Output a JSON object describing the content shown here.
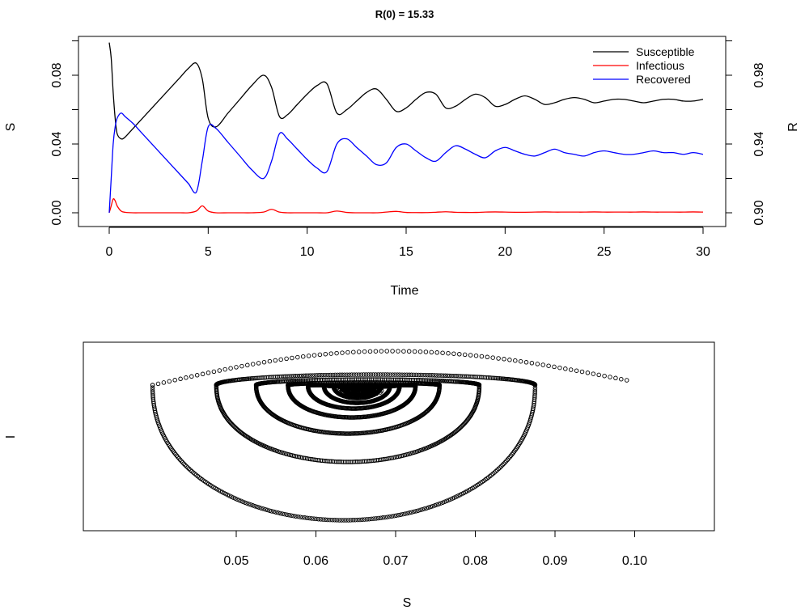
{
  "chart_data": [
    {
      "type": "line",
      "title": "R(0) = 15.33",
      "xlabel": "Time",
      "ylabel_left": "S",
      "ylabel_right": "R",
      "xlim": [
        0,
        30
      ],
      "ylim_left": [
        0,
        0.1
      ],
      "ylim_right": [
        0.9,
        1.0
      ],
      "x_ticks": [
        "0",
        "5",
        "10",
        "15",
        "20",
        "25",
        "30"
      ],
      "y_ticks_left": [
        "0.00",
        "0.04",
        "0.08"
      ],
      "y_ticks_right": [
        "0.90",
        "0.94",
        "0.98"
      ],
      "legend_position": "top-right",
      "x": [
        0,
        0.1,
        0.2,
        0.3,
        0.4,
        0.6,
        0.8,
        1.2,
        1.6,
        2,
        2.4,
        2.8,
        3.2,
        3.6,
        4,
        4.4,
        4.7,
        5,
        5.4,
        6,
        6.6,
        7.2,
        7.8,
        8.2,
        8.6,
        9,
        9.5,
        10,
        10.5,
        11,
        11.5,
        12,
        12.5,
        13,
        13.5,
        14,
        14.5,
        15,
        15.5,
        16,
        16.5,
        17,
        17.5,
        18,
        18.5,
        19,
        19.5,
        20,
        20.5,
        21,
        21.5,
        22,
        22.5,
        23,
        23.5,
        24,
        24.5,
        25,
        25.5,
        26,
        26.5,
        27,
        27.5,
        28,
        28.5,
        29,
        29.5,
        30
      ],
      "series": [
        {
          "name": "Susceptible",
          "color": "#000000",
          "axis": "left",
          "values": [
            0.099,
            0.09,
            0.07,
            0.055,
            0.046,
            0.043,
            0.044,
            0.049,
            0.054,
            0.059,
            0.064,
            0.069,
            0.074,
            0.079,
            0.084,
            0.087,
            0.078,
            0.055,
            0.05,
            0.058,
            0.066,
            0.074,
            0.08,
            0.073,
            0.056,
            0.057,
            0.063,
            0.069,
            0.074,
            0.075,
            0.058,
            0.06,
            0.065,
            0.07,
            0.072,
            0.066,
            0.059,
            0.061,
            0.066,
            0.07,
            0.069,
            0.061,
            0.062,
            0.066,
            0.069,
            0.067,
            0.062,
            0.063,
            0.066,
            0.068,
            0.066,
            0.063,
            0.064,
            0.066,
            0.067,
            0.066,
            0.064,
            0.065,
            0.066,
            0.066,
            0.065,
            0.064,
            0.065,
            0.066,
            0.066,
            0.065,
            0.065,
            0.066
          ]
        },
        {
          "name": "Infectious",
          "color": "#ff0000",
          "axis": "left",
          "values": [
            0,
            0.004,
            0.008,
            0.007,
            0.004,
            0.001,
            0.0003,
            0,
            0,
            0,
            0,
            0,
            0,
            0,
            0,
            0.001,
            0.004,
            0.001,
            0,
            0,
            0,
            0,
            0.0004,
            0.002,
            0.0004,
            0,
            0,
            0,
            0,
            0,
            0.001,
            0.0002,
            0,
            0,
            0,
            0.0004,
            0.0008,
            0.0002,
            0.0001,
            0.0001,
            0.0003,
            0.0006,
            0.0003,
            0.0002,
            0.0002,
            0.0004,
            0.0005,
            0.0004,
            0.0003,
            0.0003,
            0.0004,
            0.0005,
            0.0004,
            0.0004,
            0.0004,
            0.0004,
            0.0005,
            0.0004,
            0.0004,
            0.0004,
            0.0004,
            0.0005,
            0.0004,
            0.0004,
            0.0004,
            0.0004,
            0.0005,
            0.0004
          ]
        },
        {
          "name": "Recovered",
          "color": "#0000ff",
          "axis": "right",
          "values": [
            0.9,
            0.92,
            0.94,
            0.95,
            0.955,
            0.958,
            0.956,
            0.952,
            0.947,
            0.942,
            0.937,
            0.932,
            0.927,
            0.922,
            0.917,
            0.912,
            0.93,
            0.95,
            0.949,
            0.941,
            0.933,
            0.925,
            0.92,
            0.93,
            0.946,
            0.943,
            0.937,
            0.931,
            0.926,
            0.924,
            0.94,
            0.943,
            0.938,
            0.933,
            0.928,
            0.929,
            0.938,
            0.94,
            0.936,
            0.932,
            0.93,
            0.935,
            0.939,
            0.937,
            0.934,
            0.932,
            0.936,
            0.938,
            0.936,
            0.934,
            0.933,
            0.935,
            0.937,
            0.935,
            0.934,
            0.933,
            0.935,
            0.936,
            0.935,
            0.934,
            0.934,
            0.935,
            0.936,
            0.935,
            0.935,
            0.934,
            0.935,
            0.934
          ]
        }
      ]
    },
    {
      "type": "scatter",
      "title": "",
      "xlabel": "S",
      "ylabel": "I",
      "xlim": [
        0.038,
        0.101
      ],
      "x_ticks": [
        "0.05",
        "0.06",
        "0.07",
        "0.08",
        "0.09",
        "0.10"
      ],
      "y_ticks": [],
      "marker": "open-circle",
      "trajectory": "phase-plane spiral of the Susceptible series against Infectious, converging to S ≈ 0.065",
      "spiral_center_S": 0.0655,
      "spiral_start_S": 0.099,
      "loops": [
        {
          "s_min": 0.0395,
          "s_max": 0.0875
        },
        {
          "s_min": 0.0475,
          "s_max": 0.0805
        },
        {
          "s_min": 0.0525,
          "s_max": 0.0755
        },
        {
          "s_min": 0.0565,
          "s_max": 0.0725
        },
        {
          "s_min": 0.059,
          "s_max": 0.0705
        },
        {
          "s_min": 0.061,
          "s_max": 0.0693
        },
        {
          "s_min": 0.0622,
          "s_max": 0.0682
        },
        {
          "s_min": 0.0632,
          "s_max": 0.0675
        }
      ]
    }
  ]
}
